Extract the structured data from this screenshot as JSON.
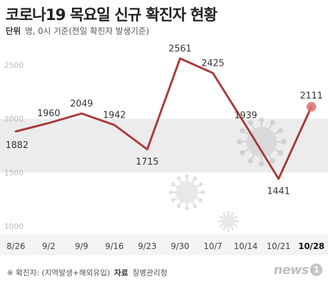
{
  "header": {
    "title": "코로나19 목요일 신규 확진자 현황",
    "unit_label": "단위",
    "unit_text": "명, 0시 기준(전일 확진자 발생기준)"
  },
  "footer": {
    "note": "※ 확진자: (지역발생+해외유입)",
    "source_label": "자료",
    "source_text": "질병관리청"
  },
  "watermark": {
    "text": "news",
    "badge": "1"
  },
  "colors": {
    "line": "#a83a3a",
    "highlight": "#e07070",
    "band": "#ececec",
    "text": "#333333"
  },
  "chart_data": {
    "type": "line",
    "title": "코로나19 목요일 신규 확진자 현황",
    "categories": [
      "8/26",
      "9/2",
      "9/9",
      "9/16",
      "9/23",
      "9/30",
      "10/7",
      "10/14",
      "10/21",
      "10/28"
    ],
    "values": [
      1882,
      1960,
      2049,
      1942,
      1715,
      2561,
      2425,
      1939,
      1441,
      2111
    ],
    "ytick_labels": [
      "1000",
      "1500",
      "2000",
      "2500"
    ],
    "ylim": [
      1000,
      2500
    ],
    "grid": "alternating horizontal bands",
    "highlight_last": true
  }
}
